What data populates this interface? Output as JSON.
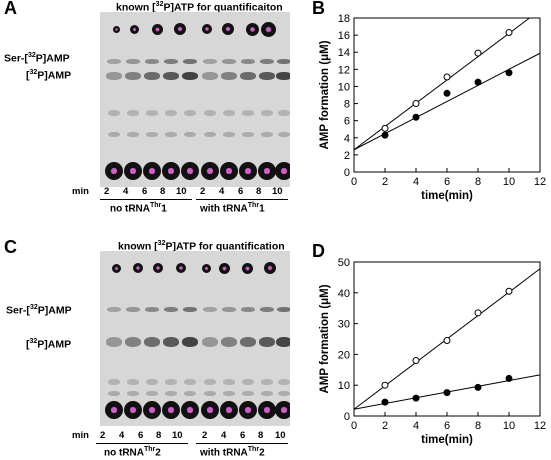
{
  "panels": {
    "A": {
      "letter": "A",
      "title": "known [32P]ATP for quantificaiton",
      "bands": {
        "ser_amp": "Ser-[32P]AMP",
        "amp": "[32P]AMP"
      },
      "min_label": "min",
      "lanes_left": [
        "2",
        "4",
        "6",
        "8",
        "10"
      ],
      "lanes_right": [
        "2",
        "4",
        "6",
        "8",
        "10"
      ],
      "cond_left": "no tRNAThr1",
      "cond_right": "with tRNAThr1"
    },
    "C": {
      "letter": "C",
      "title": "known [32P]ATP for quantification",
      "bands": {
        "ser_amp": "Ser-[32P]AMP",
        "amp": "[32P]AMP"
      },
      "min_label": "min",
      "lanes_left": [
        "2",
        "4",
        "6",
        "8",
        "10"
      ],
      "lanes_right": [
        "2",
        "4",
        "6",
        "8",
        "10"
      ],
      "cond_left": "no tRNAThr2",
      "cond_right": "with tRNAThr2"
    },
    "B": {
      "letter": "B"
    },
    "D": {
      "letter": "D"
    }
  },
  "chart_data": [
    {
      "panel": "B",
      "type": "scatter",
      "xlabel": "time(min)",
      "ylabel": "AMP formation (μM)",
      "xlim": [
        0,
        12
      ],
      "ylim": [
        0,
        18
      ],
      "xticks": [
        0,
        2,
        4,
        6,
        8,
        10,
        12
      ],
      "yticks": [
        0,
        2,
        4,
        6,
        8,
        10,
        12,
        14,
        16,
        18
      ],
      "grid": false,
      "series": [
        {
          "marker": "open-circle",
          "x": [
            2,
            4,
            6,
            8,
            10
          ],
          "y": [
            5.1,
            8.0,
            11.1,
            13.9,
            16.3
          ],
          "fit": {
            "intercept": 2.6,
            "slope": 1.36
          }
        },
        {
          "marker": "filled-circle",
          "x": [
            2,
            4,
            6,
            8,
            10
          ],
          "y": [
            4.3,
            6.4,
            9.2,
            10.5,
            11.6
          ],
          "fit": {
            "intercept": 2.6,
            "slope": 0.94
          }
        }
      ]
    },
    {
      "panel": "D",
      "type": "scatter",
      "xlabel": "time(min)",
      "ylabel": "AMP formation (μM)",
      "xlim": [
        0,
        12
      ],
      "ylim": [
        0,
        50
      ],
      "xticks": [
        0,
        2,
        4,
        6,
        8,
        10,
        12
      ],
      "yticks": [
        0,
        10,
        20,
        30,
        40,
        50
      ],
      "grid": false,
      "series": [
        {
          "marker": "open-circle",
          "x": [
            2,
            4,
            6,
            8,
            10
          ],
          "y": [
            10,
            18,
            24.5,
            33.5,
            40.5
          ],
          "fit": {
            "intercept": 2.2,
            "slope": 3.8
          }
        },
        {
          "marker": "filled-circle",
          "x": [
            2,
            4,
            6,
            8,
            10
          ],
          "y": [
            4.5,
            5.8,
            7.6,
            9.3,
            12.2
          ],
          "fit": {
            "intercept": 2.2,
            "slope": 0.93
          }
        }
      ]
    }
  ]
}
